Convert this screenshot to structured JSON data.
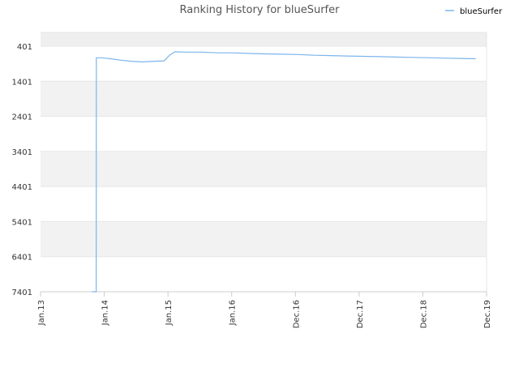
{
  "chart_data": {
    "type": "line",
    "title": "Ranking History for blueSurfer",
    "xlabel": "",
    "ylabel": "",
    "x_ticks": [
      "Jan.13",
      "Jan.14",
      "Jan.15",
      "Jan.16",
      "Dec.16",
      "Dec.17",
      "Dec.18",
      "Dec.19"
    ],
    "y_ticks": [
      "401",
      "1401",
      "2401",
      "3401",
      "4401",
      "5401",
      "6401",
      "7401"
    ],
    "y_axis_inverted": true,
    "ylim": [
      401,
      7401
    ],
    "grid": true,
    "legend_position": "top-right",
    "series": [
      {
        "name": "blueSurfer",
        "color": "#7cb5ec",
        "points": [
          [
            "2013-10-20",
            7401
          ],
          [
            "2013-11-12",
            7401
          ],
          [
            "2013-11-13",
            731
          ],
          [
            "2013-12-15",
            731
          ],
          [
            "2014-02-01",
            760
          ],
          [
            "2014-04-01",
            800
          ],
          [
            "2014-06-01",
            830
          ],
          [
            "2014-08-01",
            850
          ],
          [
            "2014-10-01",
            830
          ],
          [
            "2014-12-01",
            820
          ],
          [
            "2015-01-01",
            660
          ],
          [
            "2015-02-01",
            560
          ],
          [
            "2015-04-01",
            570
          ],
          [
            "2015-07-01",
            570
          ],
          [
            "2015-10-01",
            590
          ],
          [
            "2016-01-01",
            590
          ],
          [
            "2016-04-01",
            610
          ],
          [
            "2016-07-01",
            620
          ],
          [
            "2016-10-01",
            630
          ],
          [
            "2017-01-01",
            640
          ],
          [
            "2017-04-01",
            660
          ],
          [
            "2017-07-01",
            670
          ],
          [
            "2017-10-01",
            680
          ],
          [
            "2018-01-01",
            690
          ],
          [
            "2018-04-01",
            700
          ],
          [
            "2018-07-01",
            710
          ],
          [
            "2018-10-01",
            720
          ],
          [
            "2019-01-01",
            730
          ],
          [
            "2019-04-01",
            740
          ],
          [
            "2019-07-01",
            750
          ],
          [
            "2019-10-01",
            760
          ]
        ]
      }
    ]
  }
}
